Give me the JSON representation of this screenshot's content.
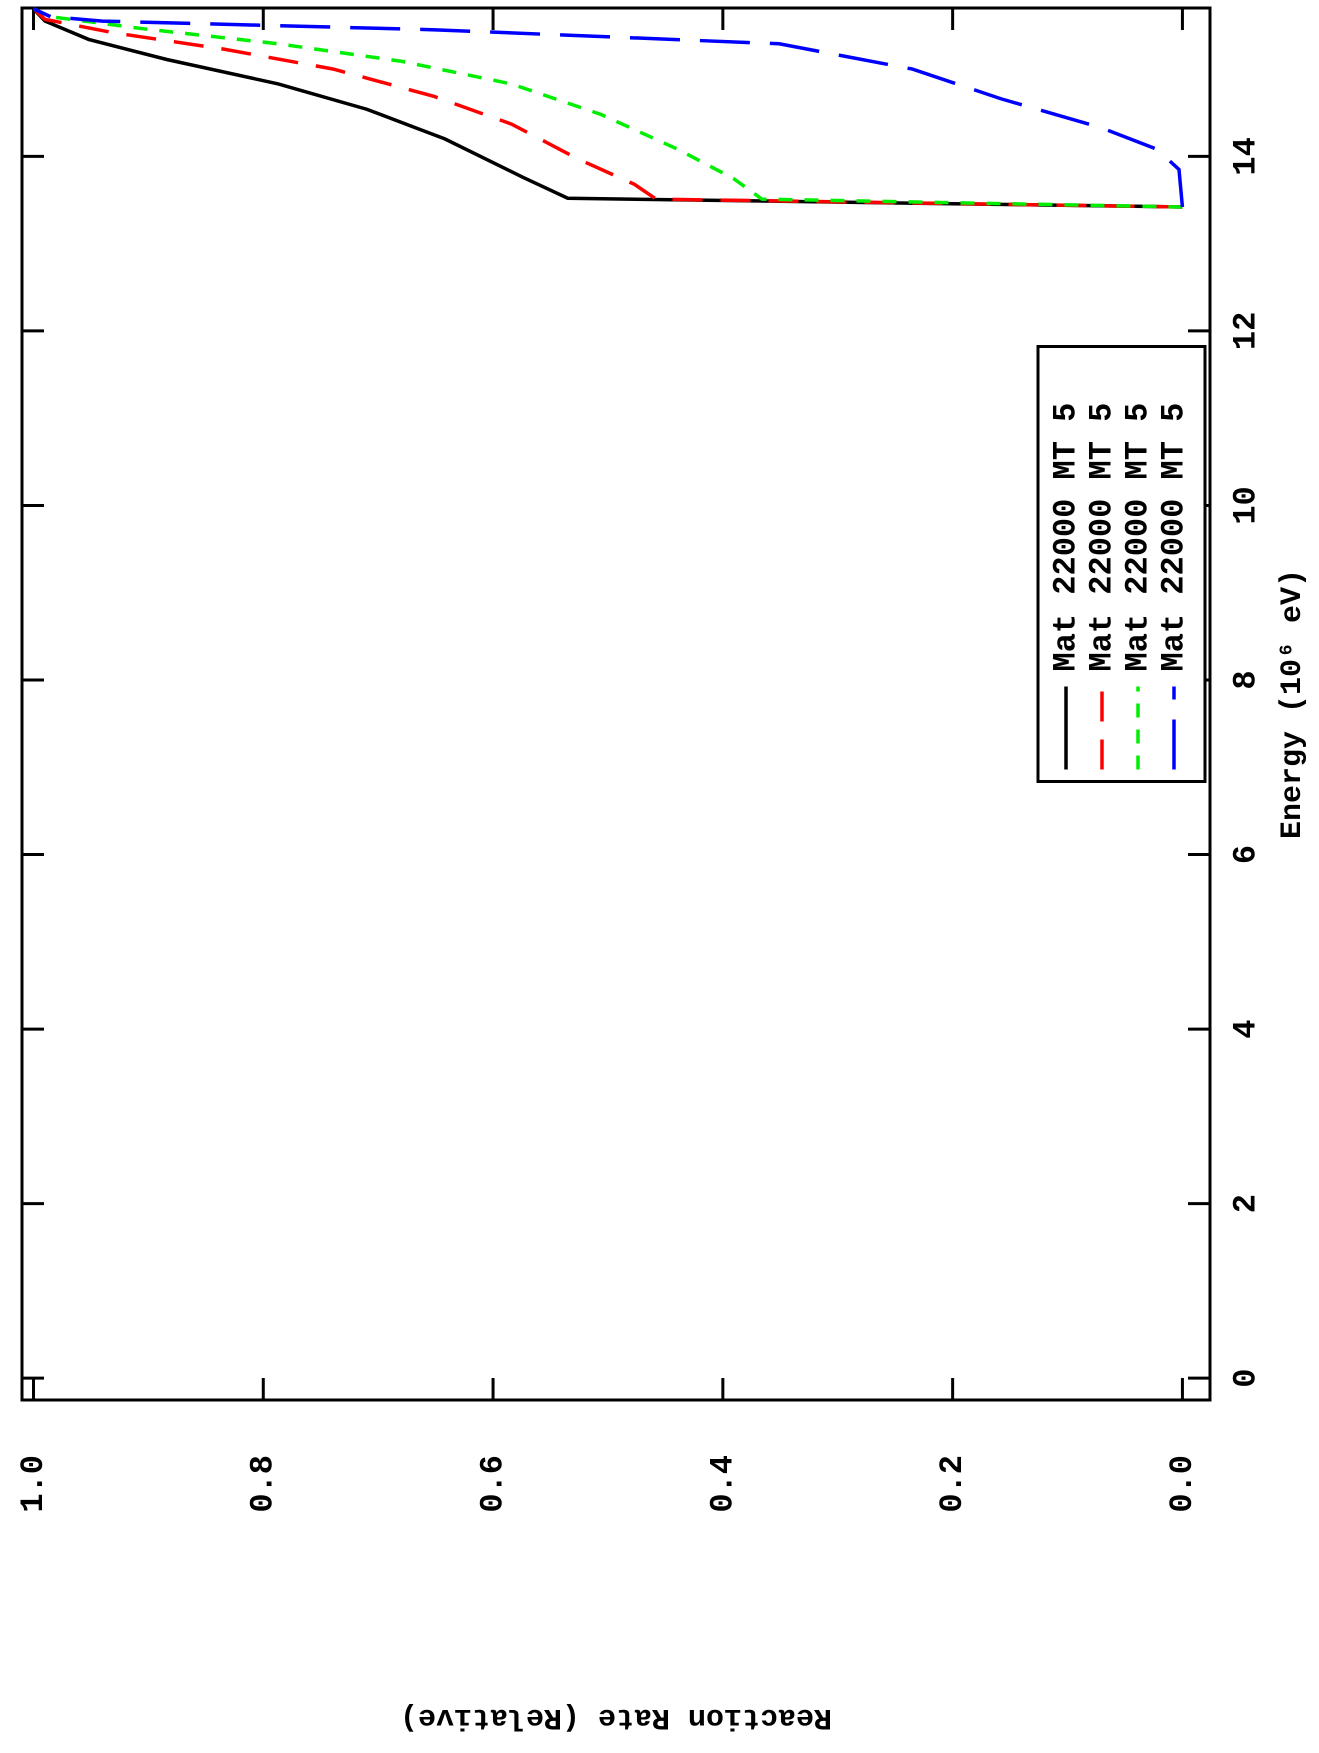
{
  "chart_data": {
    "type": "line",
    "xlabel": "Energy (10⁶ eV)",
    "ylabel": "Reaction Rate (Relative)",
    "xlim": [
      -0.25,
      15.7
    ],
    "ylim": [
      -0.024,
      1.01
    ],
    "xticks": [
      0,
      2,
      4,
      6,
      8,
      10,
      12,
      14
    ],
    "yticks": [
      {
        "value": 0,
        "label": "0.0"
      },
      0.2,
      0.4,
      0.6,
      0.8,
      {
        "value": 1,
        "label": "1.0"
      }
    ],
    "legend": "lower center",
    "series": [
      {
        "name": "Mat 22000 MT 5",
        "color": "#000000",
        "x": [
          13.42,
          13.52,
          13.76,
          14.2,
          14.54,
          14.83,
          15.11,
          15.34,
          15.55,
          15.69
        ],
        "values": [
          0,
          0.535,
          0.574,
          0.642,
          0.71,
          0.787,
          0.884,
          0.952,
          0.99,
          1.0
        ]
      },
      {
        "name": "Mat 22000 MT 5",
        "color": "#ff0000",
        "x": [
          13.42,
          13.51,
          13.68,
          13.97,
          14.37,
          14.69,
          15.0,
          15.23,
          15.42,
          15.57,
          15.69
        ],
        "values": [
          0,
          0.458,
          0.477,
          0.526,
          0.584,
          0.652,
          0.739,
          0.835,
          0.932,
          0.99,
          1.0
        ]
      },
      {
        "name": "Mat 22000 MT 5",
        "color": "#00ee00",
        "x": [
          13.42,
          13.51,
          13.74,
          14.08,
          14.48,
          14.83,
          15.09,
          15.29,
          15.46,
          15.6,
          15.69
        ],
        "values": [
          0,
          0.366,
          0.39,
          0.439,
          0.506,
          0.584,
          0.68,
          0.787,
          0.903,
          0.985,
          1.0
        ]
      },
      {
        "name": "Mat 22000 MT 5",
        "color": "#0000ff",
        "x": [
          13.42,
          13.85,
          14.08,
          14.33,
          14.66,
          15.0,
          15.29,
          15.45,
          15.55,
          15.6,
          15.69
        ],
        "values": [
          0,
          0.003,
          0.022,
          0.071,
          0.158,
          0.235,
          0.351,
          0.65,
          0.94,
          0.985,
          1.0
        ]
      }
    ]
  }
}
